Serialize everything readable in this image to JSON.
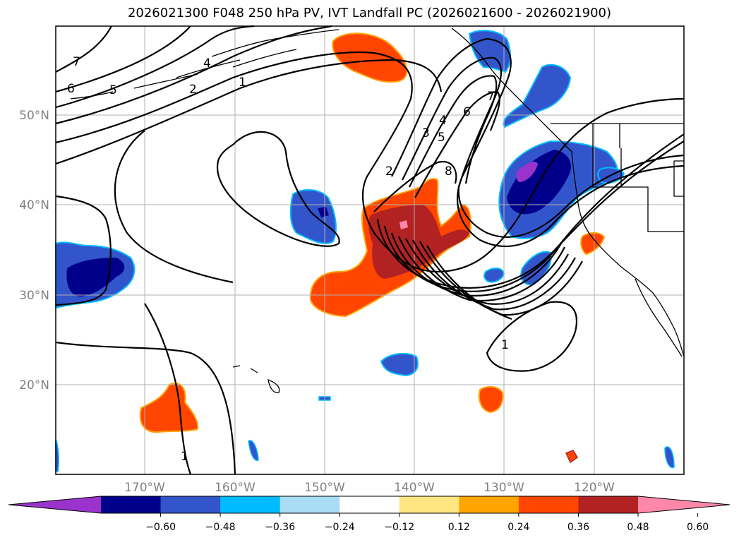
{
  "title": "2026021300 F048 250 hPa PV, IVT Landfall PC (2026021600 - 2026021900)",
  "lat_labels": [
    "50°N",
    "40°N",
    "30°N",
    "20°N"
  ],
  "lon_labels": [
    "170°W",
    "160°W",
    "150°W",
    "140°W",
    "130°W",
    "120°W"
  ],
  "colorbar": {
    "ticks": [
      "−0.60",
      "−0.48",
      "−0.36",
      "−0.24",
      "−0.12",
      "0.12",
      "0.24",
      "0.36",
      "0.48",
      "0.60"
    ],
    "colors": [
      "#9933cc",
      "#00008b",
      "#3355cc",
      "#00bbff",
      "#aaddf5",
      "#ffffff",
      "#ffe680",
      "#ffa500",
      "#ff4500",
      "#b22222",
      "#ff88aa"
    ]
  },
  "contour_labels": [
    "7",
    "6",
    "5",
    "4",
    "2",
    "1",
    "2",
    "3",
    "4",
    "5",
    "6",
    "7",
    "8",
    "1",
    "1"
  ]
}
